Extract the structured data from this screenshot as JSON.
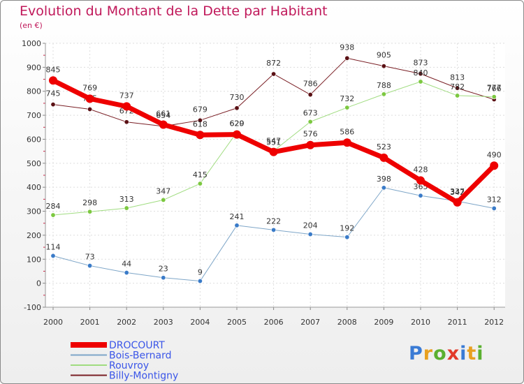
{
  "title": "Evolution du Montant de la Dette par Habitant",
  "subtitle": "(en €)",
  "logo": {
    "text": "Proxiti",
    "letter_colors": [
      "#3a7bd5",
      "#e8a020",
      "#5bb030",
      "#e23a2a",
      "#3a7bd5",
      "#e8a020",
      "#5bb030"
    ]
  },
  "chart_data": {
    "type": "line",
    "x": [
      "2000",
      "2001",
      "2002",
      "2003",
      "2004",
      "2005",
      "2006",
      "2007",
      "2008",
      "2009",
      "2010",
      "2011",
      "2012"
    ],
    "ylim": [
      -100,
      1000
    ],
    "yticks": [
      "-100",
      "0",
      "100",
      "200",
      "300",
      "400",
      "500",
      "600",
      "700",
      "800",
      "900",
      "1000"
    ],
    "grid": true,
    "legend_position": "bottom-left",
    "series": [
      {
        "name": "Billy-Montigny",
        "color": "#7a1f25",
        "marker": "#5a1014",
        "width": 1,
        "values": [
          745,
          725,
          672,
          654,
          679,
          730,
          872,
          786,
          938,
          905,
          873,
          813,
          766
        ],
        "labels": [
          "745",
          "725",
          "672",
          "654",
          "679",
          "730",
          "872",
          "786",
          "938",
          "905",
          "873",
          "813",
          "766"
        ]
      },
      {
        "name": "Rouvroy",
        "color": "#a0dc80",
        "marker": "#7cc840",
        "width": 1,
        "values": [
          284,
          298,
          313,
          347,
          415,
          629,
          551,
          673,
          732,
          788,
          840,
          782,
          777
        ],
        "labels": [
          "284",
          "298",
          "313",
          "347",
          "415",
          "629",
          "551",
          "673",
          "732",
          "788",
          "840",
          "782",
          "777"
        ]
      },
      {
        "name": "Bois-Bernard",
        "color": "#7ea6c8",
        "marker": "#3a7bc8",
        "width": 1,
        "values": [
          114,
          73,
          44,
          23,
          9,
          241,
          222,
          204,
          192,
          398,
          365,
          342,
          312
        ],
        "labels": [
          "114",
          "73",
          "44",
          "23",
          "9",
          "241",
          "222",
          "204",
          "192",
          "398",
          "365",
          "342",
          "312"
        ]
      },
      {
        "name": "DROCOURT",
        "color": "#ee0000",
        "marker": "#ee0000",
        "width": 7,
        "values": [
          845,
          769,
          737,
          661,
          618,
          620,
          547,
          576,
          586,
          523,
          428,
          337,
          490
        ],
        "labels": [
          "845",
          "769",
          "737",
          "661",
          "618",
          "620",
          "547",
          "576",
          "586",
          "523",
          "428",
          "337",
          "490"
        ]
      }
    ],
    "legend_order": [
      "DROCOURT",
      "Bois-Bernard",
      "Rouvroy",
      "Billy-Montigny"
    ]
  }
}
